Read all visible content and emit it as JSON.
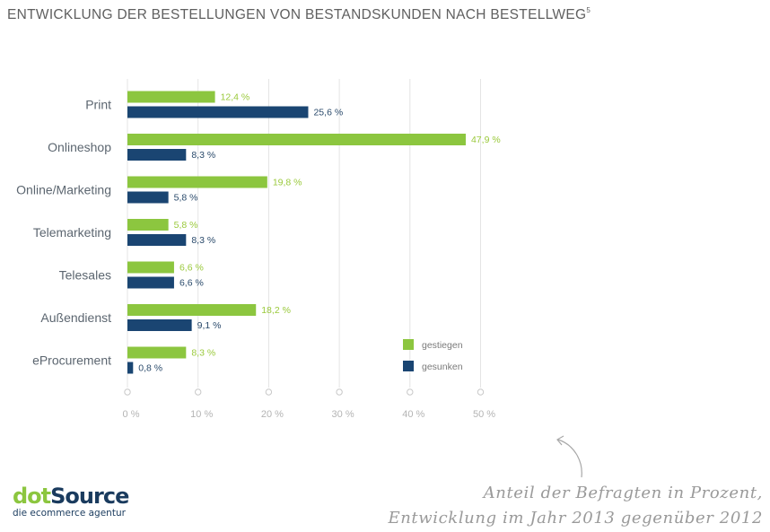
{
  "title": {
    "text": "ENTWICKLUNG DER BESTELLUNGEN VON BESTANDSKUNDEN NACH BESTELLWEG",
    "footnote": "5"
  },
  "logo": {
    "part1": "dot",
    "part2": "Source",
    "tagline": "die ecommerce agentur"
  },
  "note": {
    "line1": "Anteil der Befragten in Prozent,",
    "line2": "Entwicklung im Jahr 2013 gegenüber 2012"
  },
  "colors": {
    "green": "#8cc63f",
    "blue": "#1a4572",
    "grid": "#e4e4e4"
  },
  "chart_data": {
    "type": "bar",
    "orientation": "horizontal",
    "categories": [
      "Print",
      "Onlineshop",
      "Online/Marketing",
      "Telemarketing",
      "Telesales",
      "Außendienst",
      "eProcurement"
    ],
    "series": [
      {
        "name": "gestiegen",
        "color": "#8cc63f",
        "values": [
          12.4,
          47.9,
          19.8,
          5.8,
          6.6,
          18.2,
          8.3
        ],
        "labels": [
          "12,4 %",
          "47,9 %",
          "19,8 %",
          "5,8 %",
          "6,6 %",
          "18,2 %",
          "8,3 %"
        ]
      },
      {
        "name": "gesunken",
        "color": "#1a4572",
        "values": [
          25.6,
          8.3,
          5.8,
          8.3,
          6.6,
          9.1,
          0.8
        ],
        "labels": [
          "25,6 %",
          "8,3 %",
          "5,8 %",
          "8,3 %",
          "6,6 %",
          "9,1 %",
          "0,8 %"
        ]
      }
    ],
    "xticks": [
      "0 %",
      "10 %",
      "20 %",
      "30 %",
      "40 %",
      "50 %"
    ],
    "xlim": [
      0,
      50
    ],
    "grid": true,
    "legend_position": "bottom-right"
  }
}
